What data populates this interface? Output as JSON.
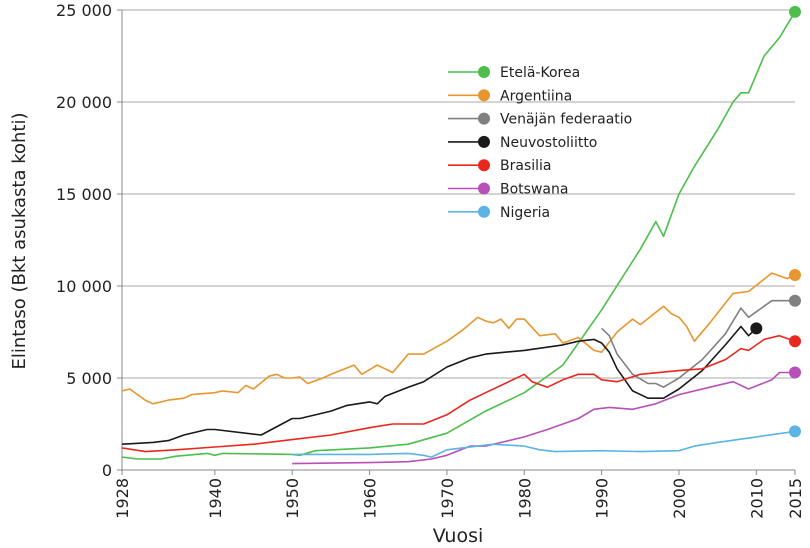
{
  "chart_data": {
    "type": "line",
    "title": "",
    "xlabel": "Vuosi",
    "ylabel": "Elintaso (Bkt asukasta kohti)",
    "xlim": [
      1928,
      2015
    ],
    "ylim": [
      0,
      25000
    ],
    "x_ticks": [
      1928,
      1940,
      1950,
      1960,
      1970,
      1980,
      1990,
      2000,
      2010,
      2015
    ],
    "y_ticks": [
      0,
      5000,
      10000,
      15000,
      20000,
      25000
    ],
    "y_tick_labels": [
      "0",
      "5 000",
      "10 000",
      "15 000",
      "20 000",
      "25 000"
    ],
    "grid": "horizontal",
    "legend_position": "top-center",
    "series": [
      {
        "name": "Etelä-Korea",
        "color": "#4cbe4c",
        "end_marker": true,
        "points": [
          [
            1928,
            700
          ],
          [
            1930,
            600
          ],
          [
            1933,
            600
          ],
          [
            1935,
            750
          ],
          [
            1939,
            900
          ],
          [
            1940,
            800
          ],
          [
            1941,
            900
          ],
          [
            1950,
            850
          ],
          [
            1951,
            800
          ],
          [
            1953,
            1050
          ],
          [
            1960,
            1200
          ],
          [
            1965,
            1400
          ],
          [
            1970,
            2000
          ],
          [
            1975,
            3200
          ],
          [
            1980,
            4200
          ],
          [
            1985,
            5700
          ],
          [
            1990,
            8700
          ],
          [
            1995,
            12000
          ],
          [
            1997,
            13500
          ],
          [
            1998,
            12700
          ],
          [
            2000,
            15000
          ],
          [
            2002,
            16500
          ],
          [
            2005,
            18500
          ],
          [
            2007,
            20000
          ],
          [
            2008,
            20500
          ],
          [
            2009,
            20500
          ],
          [
            2010,
            21500
          ],
          [
            2011,
            22500
          ],
          [
            2013,
            23500
          ],
          [
            2015,
            24900
          ]
        ]
      },
      {
        "name": "Argentiina",
        "color": "#e8962e",
        "end_marker": true,
        "points": [
          [
            1928,
            4300
          ],
          [
            1929,
            4400
          ],
          [
            1931,
            3800
          ],
          [
            1932,
            3600
          ],
          [
            1934,
            3800
          ],
          [
            1936,
            3900
          ],
          [
            1937,
            4100
          ],
          [
            1940,
            4200
          ],
          [
            1941,
            4300
          ],
          [
            1943,
            4200
          ],
          [
            1944,
            4600
          ],
          [
            1945,
            4400
          ],
          [
            1947,
            5100
          ],
          [
            1948,
            5200
          ],
          [
            1949,
            5000
          ],
          [
            1950,
            5000
          ],
          [
            1951,
            5050
          ],
          [
            1952,
            4700
          ],
          [
            1954,
            5000
          ],
          [
            1955,
            5200
          ],
          [
            1958,
            5700
          ],
          [
            1959,
            5200
          ],
          [
            1961,
            5700
          ],
          [
            1962,
            5500
          ],
          [
            1963,
            5300
          ],
          [
            1964,
            5800
          ],
          [
            1965,
            6300
          ],
          [
            1967,
            6300
          ],
          [
            1970,
            7000
          ],
          [
            1972,
            7600
          ],
          [
            1974,
            8300
          ],
          [
            1975,
            8100
          ],
          [
            1976,
            8000
          ],
          [
            1977,
            8200
          ],
          [
            1978,
            7700
          ],
          [
            1979,
            8200
          ],
          [
            1980,
            8200
          ],
          [
            1982,
            7300
          ],
          [
            1984,
            7400
          ],
          [
            1985,
            6900
          ],
          [
            1987,
            7200
          ],
          [
            1989,
            6500
          ],
          [
            1990,
            6400
          ],
          [
            1992,
            7500
          ],
          [
            1994,
            8200
          ],
          [
            1995,
            7900
          ],
          [
            1998,
            8900
          ],
          [
            1999,
            8500
          ],
          [
            2000,
            8300
          ],
          [
            2001,
            7800
          ],
          [
            2002,
            7000
          ],
          [
            2004,
            8000
          ],
          [
            2007,
            9600
          ],
          [
            2009,
            9700
          ],
          [
            2012,
            10700
          ],
          [
            2014,
            10400
          ],
          [
            2015,
            10600
          ]
        ]
      },
      {
        "name": "Venäjän federaatio",
        "color": "#808080",
        "end_marker": true,
        "points": [
          [
            1990,
            7700
          ],
          [
            1991,
            7300
          ],
          [
            1992,
            6300
          ],
          [
            1994,
            5200
          ],
          [
            1996,
            4700
          ],
          [
            1997,
            4700
          ],
          [
            1998,
            4500
          ],
          [
            2000,
            5000
          ],
          [
            2003,
            6000
          ],
          [
            2006,
            7400
          ],
          [
            2008,
            8800
          ],
          [
            2009,
            8300
          ],
          [
            2012,
            9200
          ],
          [
            2015,
            9200
          ]
        ]
      },
      {
        "name": "Neuvostoliitto",
        "color": "#1a1a1a",
        "end_marker": true,
        "points": [
          [
            1928,
            1400
          ],
          [
            1932,
            1500
          ],
          [
            1934,
            1600
          ],
          [
            1936,
            1900
          ],
          [
            1939,
            2200
          ],
          [
            1940,
            2200
          ],
          [
            1946,
            1900
          ],
          [
            1950,
            2800
          ],
          [
            1951,
            2800
          ],
          [
            1955,
            3200
          ],
          [
            1957,
            3500
          ],
          [
            1960,
            3700
          ],
          [
            1961,
            3600
          ],
          [
            1962,
            4000
          ],
          [
            1965,
            4500
          ],
          [
            1967,
            4800
          ],
          [
            1970,
            5600
          ],
          [
            1973,
            6100
          ],
          [
            1975,
            6300
          ],
          [
            1980,
            6500
          ],
          [
            1985,
            6800
          ],
          [
            1987,
            7000
          ],
          [
            1989,
            7100
          ],
          [
            1990,
            6900
          ],
          [
            1991,
            6400
          ],
          [
            1992,
            5500
          ],
          [
            1994,
            4300
          ],
          [
            1996,
            3900
          ],
          [
            1998,
            3900
          ],
          [
            2000,
            4400
          ],
          [
            2003,
            5400
          ],
          [
            2006,
            6800
          ],
          [
            2008,
            7800
          ],
          [
            2009,
            7300
          ],
          [
            2010,
            7700
          ]
        ]
      },
      {
        "name": "Brasilia",
        "color": "#e8281e",
        "end_marker": true,
        "points": [
          [
            1928,
            1200
          ],
          [
            1931,
            1000
          ],
          [
            1935,
            1100
          ],
          [
            1940,
            1250
          ],
          [
            1945,
            1400
          ],
          [
            1950,
            1650
          ],
          [
            1955,
            1900
          ],
          [
            1960,
            2300
          ],
          [
            1963,
            2500
          ],
          [
            1967,
            2500
          ],
          [
            1970,
            3000
          ],
          [
            1973,
            3800
          ],
          [
            1975,
            4200
          ],
          [
            1980,
            5200
          ],
          [
            1981,
            4800
          ],
          [
            1983,
            4500
          ],
          [
            1985,
            4900
          ],
          [
            1987,
            5200
          ],
          [
            1989,
            5200
          ],
          [
            1990,
            4900
          ],
          [
            1992,
            4800
          ],
          [
            1995,
            5200
          ],
          [
            2000,
            5400
          ],
          [
            2003,
            5500
          ],
          [
            2006,
            6000
          ],
          [
            2008,
            6600
          ],
          [
            2009,
            6500
          ],
          [
            2011,
            7100
          ],
          [
            2013,
            7300
          ],
          [
            2015,
            7000
          ]
        ]
      },
      {
        "name": "Botswana",
        "color": "#b94fb9",
        "end_marker": true,
        "points": [
          [
            1950,
            350
          ],
          [
            1960,
            400
          ],
          [
            1965,
            450
          ],
          [
            1968,
            600
          ],
          [
            1970,
            800
          ],
          [
            1973,
            1300
          ],
          [
            1975,
            1300
          ],
          [
            1980,
            1800
          ],
          [
            1983,
            2200
          ],
          [
            1985,
            2500
          ],
          [
            1987,
            2800
          ],
          [
            1989,
            3300
          ],
          [
            1991,
            3400
          ],
          [
            1994,
            3300
          ],
          [
            1997,
            3600
          ],
          [
            2000,
            4100
          ],
          [
            2004,
            4500
          ],
          [
            2007,
            4800
          ],
          [
            2009,
            4400
          ],
          [
            2012,
            4900
          ],
          [
            2013,
            5300
          ],
          [
            2015,
            5300
          ]
        ]
      },
      {
        "name": "Nigeria",
        "color": "#5ab4e6",
        "end_marker": true,
        "points": [
          [
            1950,
            850
          ],
          [
            1955,
            850
          ],
          [
            1960,
            850
          ],
          [
            1965,
            900
          ],
          [
            1967,
            800
          ],
          [
            1968,
            700
          ],
          [
            1970,
            1100
          ],
          [
            1974,
            1300
          ],
          [
            1976,
            1400
          ],
          [
            1980,
            1300
          ],
          [
            1982,
            1100
          ],
          [
            1984,
            1000
          ],
          [
            1990,
            1050
          ],
          [
            1995,
            1000
          ],
          [
            2000,
            1050
          ],
          [
            2002,
            1300
          ],
          [
            2005,
            1500
          ],
          [
            2010,
            1800
          ],
          [
            2015,
            2100
          ]
        ]
      }
    ]
  }
}
